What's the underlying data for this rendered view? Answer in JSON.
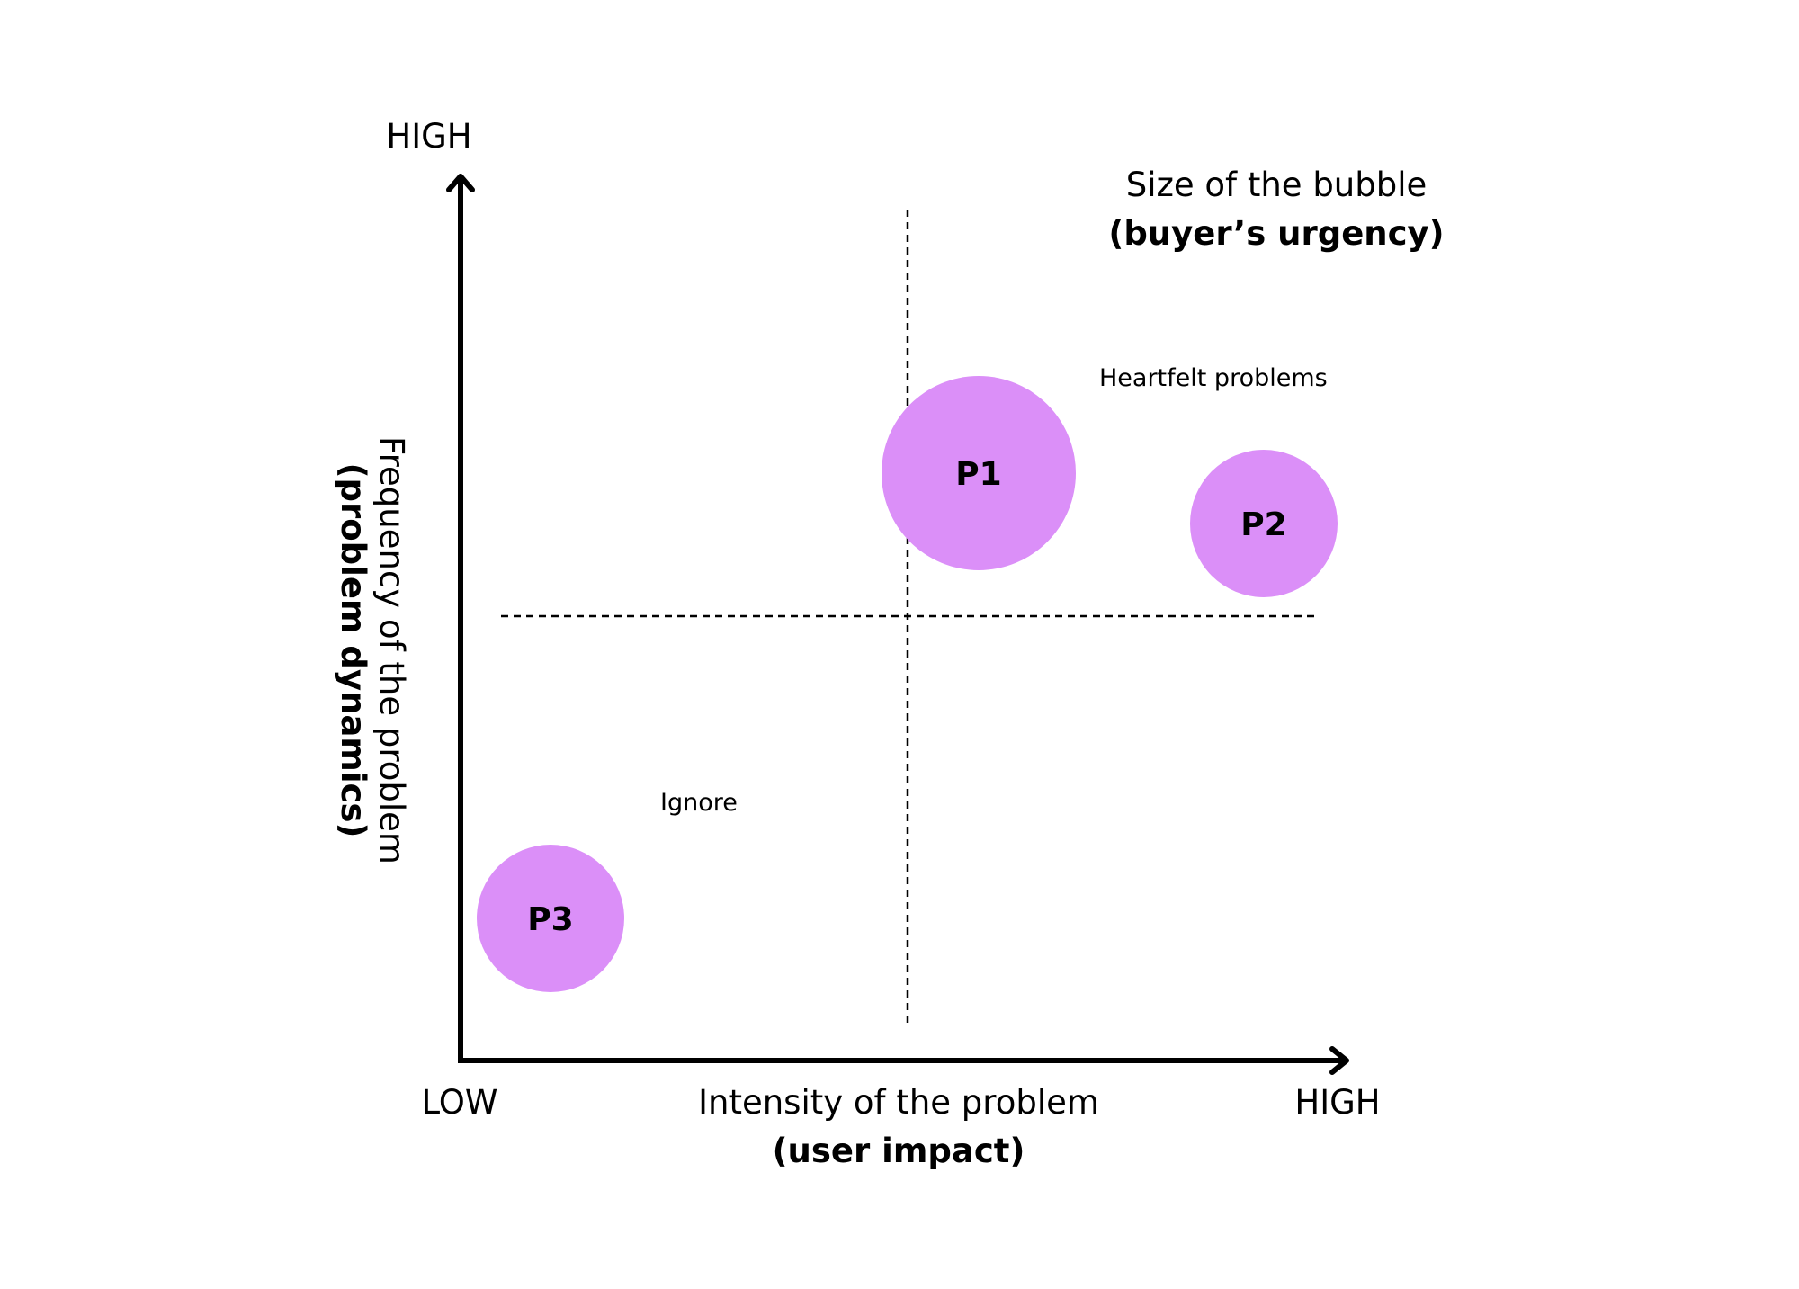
{
  "colors": {
    "bubble": "#DB8FF8",
    "axis": "#000000",
    "text": "#000000",
    "background": "#FFFFFF"
  },
  "x_axis": {
    "low_label": "LOW",
    "high_label": "HIGH",
    "title": "Intensity of the problem",
    "title_bold": "(user impact)"
  },
  "y_axis": {
    "high_label": "HIGH",
    "title": "Frequency of the problem",
    "title_bold": "(problem dynamics)"
  },
  "legend": {
    "title": "Size of the bubble",
    "title_bold": "(buyer’s urgency)"
  },
  "regions": {
    "top_right": "Heartfelt problems",
    "bottom_left": "Ignore"
  },
  "bubbles": [
    {
      "label": "P1"
    },
    {
      "label": "P2"
    },
    {
      "label": "P3"
    }
  ]
}
